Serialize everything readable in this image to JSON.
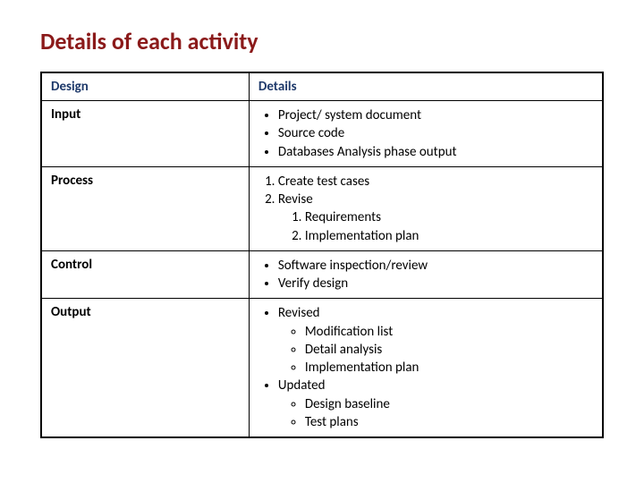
{
  "title": "Details of each activity",
  "headers": {
    "col1": "Design",
    "col2": "Details"
  },
  "rows": {
    "input": {
      "label": "Input",
      "items": [
        "Project/ system document",
        "Source code",
        "Databases Analysis phase output"
      ]
    },
    "process": {
      "label": "Process",
      "items": [
        "Create test cases",
        "Revise"
      ],
      "sub": [
        "Requirements",
        "Implementation plan"
      ]
    },
    "control": {
      "label": "Control",
      "items": [
        "Software inspection/review",
        "Verify design"
      ]
    },
    "output": {
      "label": "Output",
      "group1": {
        "head": "Revised",
        "items": [
          "Modification list",
          "Detail analysis",
          "Implementation plan"
        ]
      },
      "group2": {
        "head": "Updated",
        "items": [
          "Design baseline",
          "Test plans"
        ]
      }
    }
  },
  "styling": {
    "title_color": "#8b1a1a",
    "header_color": "#1f3a6b",
    "border_color": "#000000",
    "background": "#ffffff",
    "title_fontsize": 26,
    "cell_fontsize": 15,
    "col1_width_pct": 37
  }
}
